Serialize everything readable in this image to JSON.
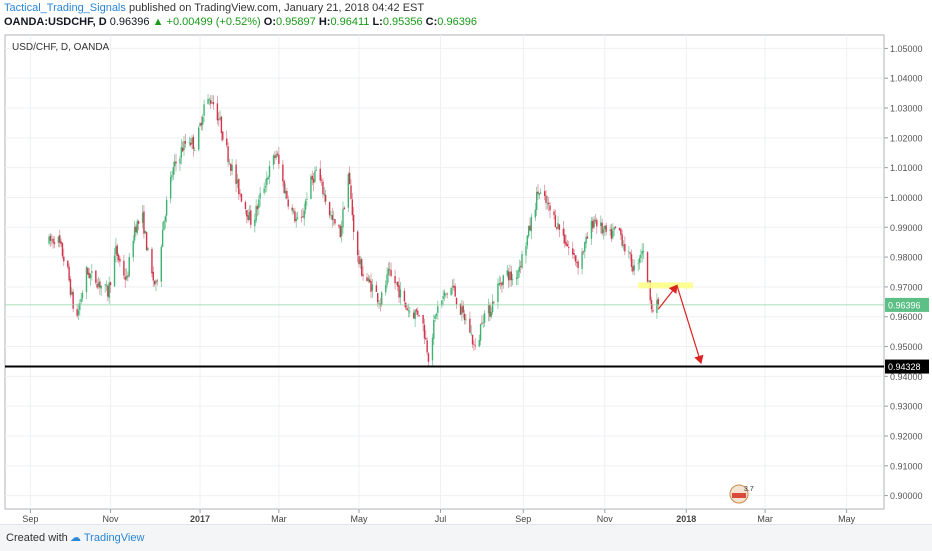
{
  "header": {
    "author": "Tactical_Trading_Signals",
    "published": "published on TradingView.com, January 21, 2018 04:42 EST"
  },
  "ohlc_bar": {
    "symbol": "OANDA:USDCHF, D",
    "last": "0.96396",
    "change": "+0.00499 (+0.52%)",
    "o_label": "O:",
    "o": "0.95897",
    "h_label": "H:",
    "h": "0.96411",
    "l_label": "L:",
    "l": "0.95356",
    "c_label": "C:",
    "c": "0.96396"
  },
  "footer": {
    "created_with": "Created with",
    "brand": "TradingView"
  },
  "colors": {
    "up": "#3cb371",
    "down": "#d2344a",
    "wick": "#8a8a8a",
    "accent": "#2a86d6",
    "zone": "#ffff88",
    "arrow": "#dd2222"
  },
  "chart_data": {
    "type": "candlestick",
    "title": "USD/CHF, D, OANDA",
    "ylim": [
      0.8955,
      1.0545
    ],
    "y_ticks": [
      "1.05000",
      "1.04000",
      "1.03000",
      "1.02000",
      "1.01000",
      "1.00000",
      "0.99000",
      "0.98000",
      "0.97000",
      "0.96000",
      "0.95000",
      "0.94000",
      "0.93000",
      "0.92000",
      "0.91000",
      "0.90000"
    ],
    "x_ticks": [
      "Sep",
      "Nov",
      "2017",
      "Mar",
      "May",
      "Jul",
      "Sep",
      "Nov",
      "2018",
      "Mar",
      "May"
    ],
    "last_price_label": "0.96396",
    "last_price": 0.96396,
    "support_label": "0.94328",
    "support_level": 0.94328,
    "resistance_zone": [
      0.9695,
      0.9715
    ],
    "anchors": [
      [
        0,
        0.985
      ],
      [
        6,
        0.987
      ],
      [
        14,
        0.975
      ],
      [
        20,
        0.958
      ],
      [
        28,
        0.975
      ],
      [
        36,
        0.972
      ],
      [
        44,
        0.968
      ],
      [
        50,
        0.982
      ],
      [
        58,
        0.972
      ],
      [
        64,
        0.99
      ],
      [
        70,
        0.993
      ],
      [
        76,
        0.975
      ],
      [
        80,
        0.97
      ],
      [
        86,
        0.993
      ],
      [
        92,
        1.008
      ],
      [
        98,
        1.015
      ],
      [
        104,
        1.02
      ],
      [
        110,
        1.017
      ],
      [
        116,
        1.031
      ],
      [
        122,
        1.033
      ],
      [
        128,
        1.025
      ],
      [
        134,
        1.014
      ],
      [
        140,
        1.005
      ],
      [
        146,
        0.998
      ],
      [
        152,
        0.991
      ],
      [
        158,
        1.0
      ],
      [
        164,
        1.008
      ],
      [
        170,
        1.015
      ],
      [
        176,
        1.003
      ],
      [
        182,
        0.995
      ],
      [
        188,
        0.99
      ],
      [
        194,
        1.003
      ],
      [
        200,
        1.009
      ],
      [
        206,
        1.001
      ],
      [
        212,
        0.992
      ],
      [
        218,
        0.988
      ],
      [
        224,
        1.008
      ],
      [
        230,
        0.981
      ],
      [
        236,
        0.973
      ],
      [
        242,
        0.97
      ],
      [
        248,
        0.965
      ],
      [
        254,
        0.974
      ],
      [
        260,
        0.971
      ],
      [
        266,
        0.964
      ],
      [
        272,
        0.961
      ],
      [
        278,
        0.962
      ],
      [
        284,
        0.947
      ],
      [
        290,
        0.962
      ],
      [
        296,
        0.967
      ],
      [
        302,
        0.97
      ],
      [
        308,
        0.962
      ],
      [
        314,
        0.957
      ],
      [
        320,
        0.947
      ],
      [
        324,
        0.96
      ],
      [
        330,
        0.962
      ],
      [
        336,
        0.97
      ],
      [
        342,
        0.975
      ],
      [
        348,
        0.972
      ],
      [
        354,
        0.98
      ],
      [
        360,
        0.99
      ],
      [
        366,
        1.002
      ],
      [
        372,
        0.998
      ],
      [
        378,
        0.993
      ],
      [
        384,
        0.988
      ],
      [
        390,
        0.982
      ],
      [
        396,
        0.978
      ],
      [
        402,
        0.985
      ],
      [
        408,
        0.993
      ],
      [
        414,
        0.989
      ],
      [
        420,
        0.987
      ],
      [
        426,
        0.99
      ],
      [
        432,
        0.982
      ],
      [
        438,
        0.976
      ],
      [
        444,
        0.983
      ],
      [
        448,
        0.973
      ],
      [
        452,
        0.962
      ],
      [
        456,
        0.964
      ]
    ],
    "x_end": 456,
    "tick_days": [
      -14,
      46,
      113,
      172,
      232,
      293,
      355,
      416,
      477,
      536,
      597
    ],
    "x_domain": [
      -33,
      625
    ],
    "extension_points": [
      [
        456,
        0.9625
      ],
      [
        470,
        0.9705
      ],
      [
        488,
        0.9445
      ]
    ]
  }
}
